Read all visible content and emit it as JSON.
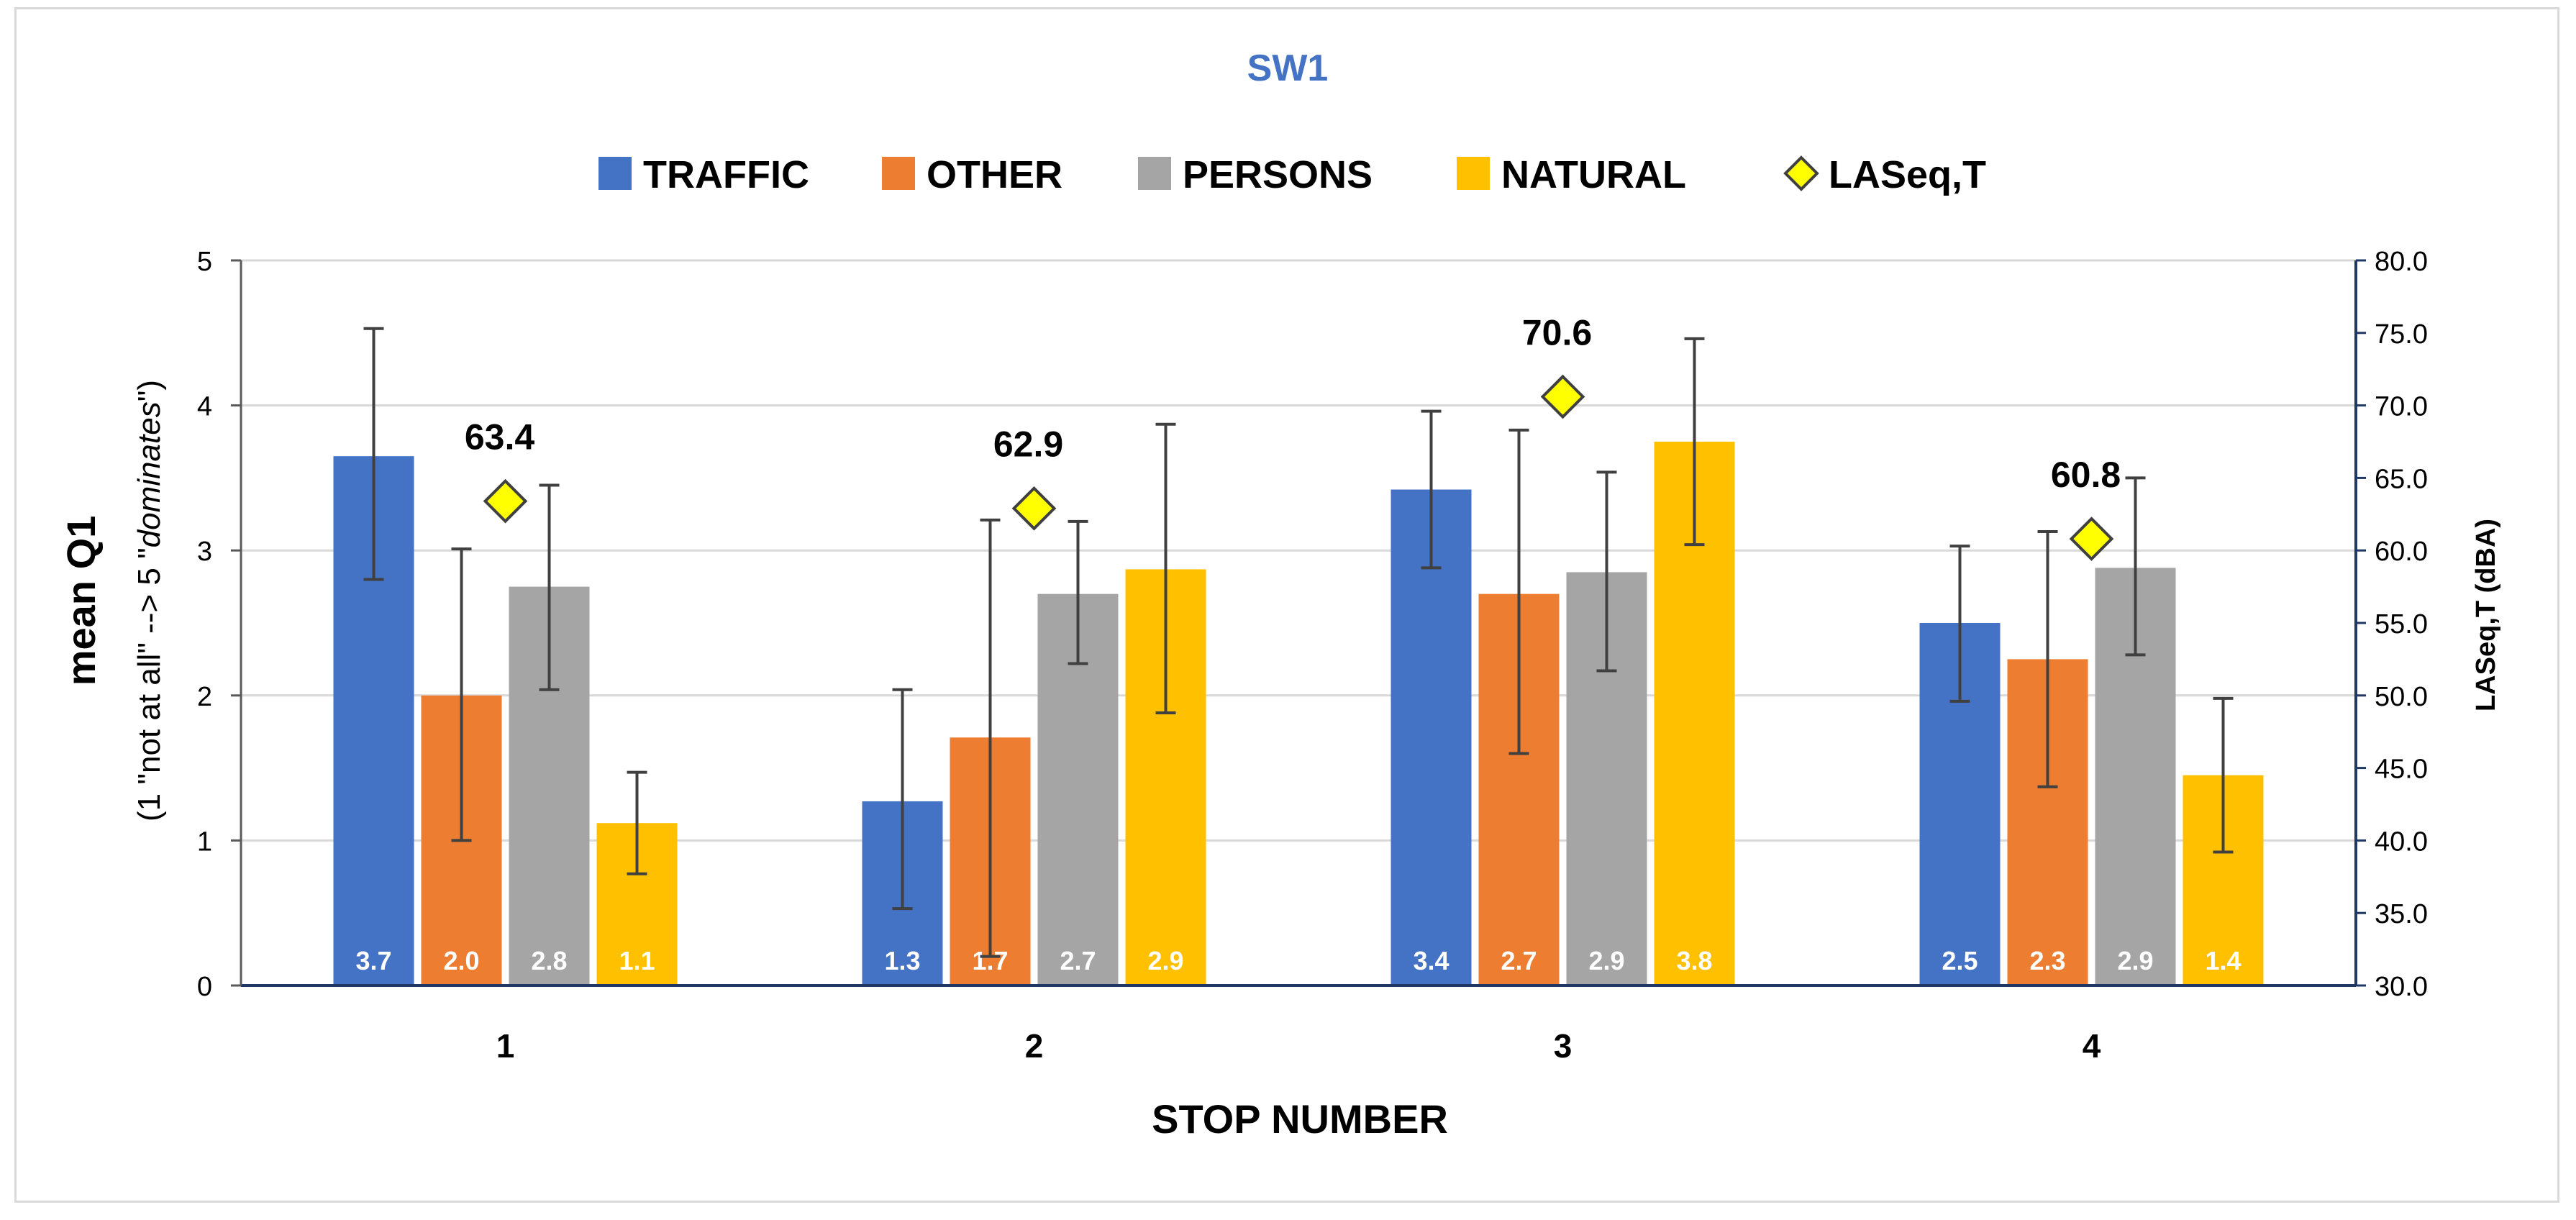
{
  "chart_data": {
    "type": "bar",
    "title": "SW1",
    "xlabel": "STOP NUMBER",
    "ylabel_main": "mean Q1",
    "ylabel_sub_pre": "(1 \"not at all\" --> 5 \"",
    "ylabel_sub_italic": "dominates",
    "ylabel_sub_post": "\")",
    "y2label": "LASeq,T (dBA)",
    "categories": [
      "1",
      "2",
      "3",
      "4"
    ],
    "ylim": [
      0,
      5
    ],
    "yticks": [
      "0",
      "1",
      "2",
      "3",
      "4",
      "5"
    ],
    "y2lim": [
      30,
      80
    ],
    "y2ticks": [
      "30.0",
      "35.0",
      "40.0",
      "45.0",
      "50.0",
      "55.0",
      "60.0",
      "65.0",
      "70.0",
      "75.0",
      "80.0"
    ],
    "series": [
      {
        "name": "TRAFFIC",
        "color": "#4472c4",
        "values": [
          3.65,
          1.27,
          3.42,
          2.5
        ],
        "labels": [
          "3.7",
          "1.3",
          "3.4",
          "2.5"
        ],
        "err_low": [
          2.8,
          0.53,
          2.88,
          1.96
        ],
        "err_high": [
          4.53,
          2.04,
          3.96,
          3.03
        ]
      },
      {
        "name": "OTHER",
        "color": "#ed7d31",
        "values": [
          2.0,
          1.71,
          2.7,
          2.25
        ],
        "labels": [
          "2.0",
          "1.7",
          "2.7",
          "2.3"
        ],
        "err_low": [
          1.0,
          0.2,
          1.6,
          1.37
        ],
        "err_high": [
          3.01,
          3.21,
          3.83,
          3.13
        ]
      },
      {
        "name": "PERSONS",
        "color": "#a5a5a5",
        "values": [
          2.75,
          2.7,
          2.85,
          2.88
        ],
        "labels": [
          "2.8",
          "2.7",
          "2.9",
          "2.9"
        ],
        "err_low": [
          2.04,
          2.22,
          2.17,
          2.28
        ],
        "err_high": [
          3.45,
          3.2,
          3.54,
          3.5
        ]
      },
      {
        "name": "NATURAL",
        "color": "#ffc000",
        "values": [
          1.12,
          2.87,
          3.75,
          1.45
        ],
        "labels": [
          "1.1",
          "2.9",
          "3.8",
          "1.4"
        ],
        "err_low": [
          0.77,
          1.88,
          3.04,
          0.92
        ],
        "err_high": [
          1.47,
          3.87,
          4.46,
          1.98
        ]
      }
    ],
    "line_series": {
      "name": "LASeq,T",
      "axis": "right",
      "marker": "diamond",
      "color": "#ffff00",
      "values": [
        63.4,
        62.9,
        70.6,
        60.8
      ],
      "labels": [
        "63.4",
        "62.9",
        "70.6",
        "60.8"
      ]
    },
    "legend": "top",
    "grid": true
  }
}
